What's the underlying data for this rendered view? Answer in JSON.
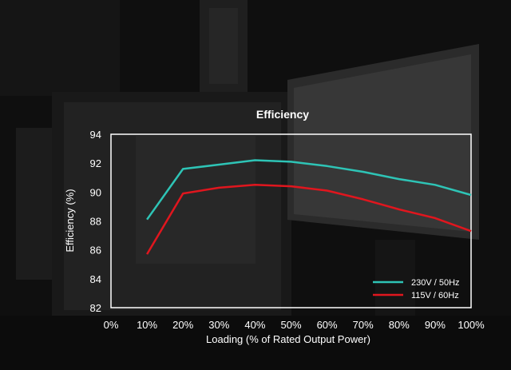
{
  "chart_data": {
    "type": "line",
    "title": "Efficiency",
    "xlabel": "Loading (% of Rated Output Power)",
    "ylabel": "Efficiency (%)",
    "x_ticks": [
      "0%",
      "10%",
      "20%",
      "30%",
      "40%",
      "50%",
      "60%",
      "70%",
      "80%",
      "90%",
      "100%"
    ],
    "y_ticks": [
      "82",
      "84",
      "86",
      "88",
      "90",
      "92",
      "94"
    ],
    "xlim": [
      0,
      100
    ],
    "ylim": [
      82,
      94
    ],
    "grid": false,
    "legend_position": "bottom-right",
    "series": [
      {
        "name": "230V / 50Hz",
        "color": "#2ec4b6",
        "x": [
          10,
          20,
          30,
          40,
          50,
          60,
          70,
          80,
          90,
          100
        ],
        "values": [
          88.1,
          91.6,
          91.9,
          92.2,
          92.1,
          91.8,
          91.4,
          90.9,
          90.5,
          89.8
        ]
      },
      {
        "name": "115V / 60Hz",
        "color": "#e0161e",
        "x": [
          10,
          20,
          30,
          40,
          50,
          60,
          70,
          80,
          90,
          100
        ],
        "values": [
          85.7,
          89.9,
          90.3,
          90.5,
          90.4,
          90.1,
          89.5,
          88.8,
          88.2,
          87.3
        ]
      }
    ]
  }
}
